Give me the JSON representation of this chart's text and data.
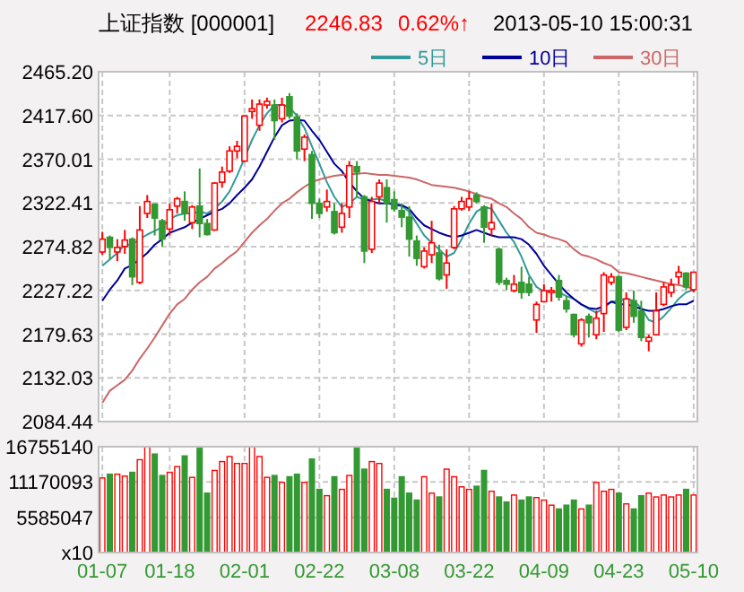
{
  "chart_data": [
    {
      "type": "candlestick",
      "title": "上证指数 [000001]",
      "annotations": [
        "2246.83",
        "0.62%↑",
        "2013-05-10 15:00:31"
      ],
      "categories": [
        null,
        null,
        null,
        null,
        null,
        null,
        null,
        null,
        null,
        null,
        null,
        null,
        null,
        null,
        null,
        null,
        null,
        null,
        null,
        null,
        null,
        null,
        null,
        null,
        null,
        null,
        null,
        null,
        null,
        null,
        null,
        null,
        null,
        null,
        null,
        null,
        null,
        null,
        null,
        null,
        null,
        null,
        null,
        null,
        null,
        null,
        null,
        null,
        null,
        null,
        null,
        null,
        null,
        null,
        null,
        null,
        null,
        null,
        null,
        null,
        null,
        null,
        null,
        null,
        null,
        null,
        null,
        null,
        null,
        null,
        null,
        null,
        null,
        null,
        null,
        null,
        null,
        null,
        null,
        null
      ],
      "ohlc": [
        [
          2269,
          2291,
          2266,
          2283
        ],
        [
          2285,
          2287,
          2261,
          2274
        ],
        [
          2269,
          2283,
          2259,
          2274
        ],
        [
          2275,
          2293,
          2267,
          2282
        ],
        [
          2283,
          2285,
          2233,
          2242
        ],
        [
          2236,
          2319,
          2234,
          2293
        ],
        [
          2311,
          2331,
          2306,
          2324
        ],
        [
          2321,
          2322,
          2287,
          2306
        ],
        [
          2303,
          2305,
          2275,
          2283
        ],
        [
          2294,
          2322,
          2287,
          2315
        ],
        [
          2319,
          2329,
          2311,
          2327
        ],
        [
          2324,
          2335,
          2303,
          2311
        ],
        [
          2301,
          2320,
          2294,
          2318
        ],
        [
          2319,
          2360,
          2285,
          2300
        ],
        [
          2300,
          2305,
          2287,
          2288
        ],
        [
          2293,
          2345,
          2292,
          2344
        ],
        [
          2345,
          2362,
          2339,
          2356
        ],
        [
          2357,
          2384,
          2355,
          2379
        ],
        [
          2379,
          2390,
          2371,
          2384
        ],
        [
          2368,
          2418,
          2367,
          2417
        ],
        [
          2422,
          2435,
          2414,
          2425
        ],
        [
          2407,
          2435,
          2401,
          2430
        ],
        [
          2429,
          2437,
          2425,
          2433
        ],
        [
          2429,
          2435,
          2391,
          2412
        ],
        [
          2414,
          2437,
          2410,
          2429
        ],
        [
          2438,
          2442,
          2414,
          2417
        ],
        [
          2416,
          2420,
          2370,
          2379
        ],
        [
          2381,
          2397,
          2368,
          2394
        ],
        [
          2375,
          2379,
          2305,
          2322
        ],
        [
          2322,
          2327,
          2306,
          2311
        ],
        [
          2318,
          2337,
          2313,
          2324
        ],
        [
          2313,
          2322,
          2288,
          2290
        ],
        [
          2296,
          2322,
          2290,
          2311
        ],
        [
          2318,
          2368,
          2306,
          2363
        ],
        [
          2362,
          2368,
          2329,
          2356
        ],
        [
          2329,
          2331,
          2257,
          2270
        ],
        [
          2272,
          2329,
          2268,
          2324
        ],
        [
          2329,
          2348,
          2322,
          2344
        ],
        [
          2339,
          2348,
          2301,
          2322
        ],
        [
          2326,
          2335,
          2313,
          2316
        ],
        [
          2314,
          2322,
          2296,
          2307
        ],
        [
          2307,
          2319,
          2264,
          2283
        ],
        [
          2281,
          2287,
          2254,
          2262
        ],
        [
          2253,
          2274,
          2251,
          2270
        ],
        [
          2266,
          2303,
          2257,
          2279
        ],
        [
          2268,
          2277,
          2238,
          2240
        ],
        [
          2244,
          2272,
          2229,
          2257
        ],
        [
          2274,
          2319,
          2272,
          2316
        ],
        [
          2316,
          2329,
          2314,
          2324
        ],
        [
          2318,
          2335,
          2314,
          2327
        ],
        [
          2331,
          2334,
          2322,
          2324
        ],
        [
          2318,
          2320,
          2279,
          2296
        ],
        [
          2294,
          2322,
          2287,
          2301
        ],
        [
          2272,
          2274,
          2233,
          2236
        ],
        [
          2238,
          2241,
          2228,
          2234
        ],
        [
          2227,
          2244,
          2225,
          2234
        ],
        [
          2236,
          2253,
          2218,
          2225
        ],
        [
          2234,
          2242,
          2221,
          2225
        ],
        [
          2195,
          2215,
          2181,
          2212
        ],
        [
          2215,
          2234,
          2214,
          2227
        ],
        [
          2225,
          2231,
          2215,
          2227
        ],
        [
          2238,
          2244,
          2216,
          2220
        ],
        [
          2216,
          2221,
          2203,
          2207
        ],
        [
          2201,
          2202,
          2176,
          2179
        ],
        [
          2169,
          2197,
          2166,
          2195
        ],
        [
          2199,
          2202,
          2176,
          2192
        ],
        [
          2179,
          2205,
          2174,
          2197
        ],
        [
          2202,
          2247,
          2182,
          2244
        ],
        [
          2236,
          2246,
          2233,
          2242
        ],
        [
          2242,
          2244,
          2182,
          2184
        ],
        [
          2187,
          2225,
          2184,
          2218
        ],
        [
          2216,
          2227,
          2192,
          2199
        ],
        [
          2205,
          2216,
          2172,
          2176
        ],
        [
          2172,
          2179,
          2161,
          2176
        ],
        [
          2179,
          2225,
          2178,
          2205
        ],
        [
          2212,
          2236,
          2210,
          2231
        ],
        [
          2225,
          2240,
          2220,
          2233
        ],
        [
          2242,
          2254,
          2234,
          2247
        ],
        [
          2246,
          2247,
          2228,
          2231
        ],
        [
          2228,
          2247,
          2225,
          2247
        ]
      ],
      "series": [
        {
          "name": "5日",
          "type": "line",
          "color": "#339999",
          "values": [
            2254,
            2261,
            2268,
            2277,
            2277,
            2283,
            2288,
            2292,
            2296,
            2305,
            2309,
            2311,
            2311,
            2313,
            2311,
            2316,
            2324,
            2335,
            2352,
            2371,
            2391,
            2407,
            2420,
            2429,
            2429,
            2427,
            2417,
            2404,
            2384,
            2365,
            2345,
            2329,
            2318,
            2322,
            2329,
            2326,
            2326,
            2327,
            2324,
            2320,
            2319,
            2313,
            2300,
            2287,
            2279,
            2272,
            2264,
            2268,
            2283,
            2300,
            2313,
            2318,
            2316,
            2303,
            2290,
            2280,
            2264,
            2244,
            2231,
            2226,
            2226,
            2225,
            2221,
            2218,
            2212,
            2207,
            2203,
            2208,
            2215,
            2216,
            2218,
            2216,
            2208,
            2195,
            2192,
            2199,
            2208,
            2218,
            2225,
            2228
          ]
        },
        {
          "name": "10日",
          "type": "line",
          "color": "#000099",
          "values": [
            2216,
            2228,
            2238,
            2251,
            2255,
            2261,
            2268,
            2277,
            2283,
            2290,
            2293,
            2296,
            2301,
            2305,
            2309,
            2313,
            2316,
            2322,
            2331,
            2339,
            2348,
            2362,
            2378,
            2394,
            2407,
            2412,
            2413,
            2412,
            2401,
            2391,
            2378,
            2365,
            2357,
            2345,
            2335,
            2327,
            2324,
            2322,
            2322,
            2321,
            2320,
            2316,
            2306,
            2298,
            2294,
            2290,
            2287,
            2285,
            2287,
            2290,
            2293,
            2290,
            2287,
            2285,
            2285,
            2285,
            2283,
            2277,
            2267,
            2254,
            2244,
            2234,
            2225,
            2218,
            2212,
            2208,
            2207,
            2210,
            2215,
            2212,
            2212,
            2210,
            2207,
            2205,
            2205,
            2207,
            2210,
            2212,
            2212,
            2216
          ]
        },
        {
          "name": "30日",
          "type": "line",
          "color": "#cc6666",
          "values": [
            2105,
            2118,
            2124,
            2130,
            2140,
            2153,
            2164,
            2176,
            2189,
            2202,
            2212,
            2218,
            2228,
            2236,
            2242,
            2251,
            2257,
            2264,
            2270,
            2280,
            2290,
            2298,
            2305,
            2314,
            2322,
            2327,
            2334,
            2340,
            2345,
            2348,
            2350,
            2352,
            2353,
            2354,
            2354,
            2355,
            2354,
            2353,
            2353,
            2352,
            2351,
            2350,
            2348,
            2345,
            2342,
            2341,
            2340,
            2339,
            2337,
            2335,
            2332,
            2329,
            2327,
            2322,
            2318,
            2311,
            2305,
            2296,
            2290,
            2288,
            2285,
            2283,
            2280,
            2272,
            2266,
            2264,
            2261,
            2257,
            2254,
            2247,
            2246,
            2244,
            2242,
            2240,
            2238,
            2236,
            2234,
            2233,
            2231,
            2229
          ]
        }
      ],
      "ylim": [
        2084.44,
        2465.2
      ],
      "yticks": [
        {
          "value": 2084.44,
          "label": "2084.44"
        },
        2132.03,
        2179.63,
        {
          "value": 2227.22,
          "label": "2227.22"
        },
        2274.82,
        2322.41,
        {
          "value": 2370.01,
          "label": "2370.01"
        },
        {
          "value": 2417.6,
          "label": "2417.60"
        },
        {
          "value": 2465.2,
          "label": "2465.20"
        }
      ],
      "grid": true,
      "legend": "top right",
      "tick_labels": "y"
    },
    {
      "type": "bar",
      "categories": [
        "01-07",
        null,
        null,
        null,
        null,
        null,
        null,
        null,
        null,
        "01-18",
        null,
        null,
        null,
        null,
        null,
        null,
        null,
        null,
        null,
        "02-01",
        null,
        null,
        null,
        null,
        null,
        null,
        null,
        null,
        null,
        "02-22",
        null,
        null,
        null,
        null,
        null,
        null,
        null,
        null,
        null,
        "03-08",
        null,
        null,
        null,
        null,
        null,
        null,
        null,
        null,
        null,
        "03-22",
        null,
        null,
        null,
        null,
        null,
        null,
        null,
        null,
        null,
        "04-09",
        null,
        null,
        null,
        null,
        null,
        null,
        null,
        null,
        null,
        "04-23",
        null,
        null,
        null,
        null,
        null,
        null,
        null,
        null,
        null,
        "05-10"
      ],
      "values": [
        11800000,
        12400000,
        12400000,
        12100000,
        12700000,
        14700000,
        16700000,
        15600000,
        12200000,
        12700000,
        13600000,
        15300000,
        11900000,
        16500000,
        9400000,
        13000000,
        14400000,
        15200000,
        14100000,
        14100000,
        16700000,
        15200000,
        11900000,
        12200000,
        11100000,
        12000000,
        12400000,
        11100000,
        14800000,
        10000000,
        9000000,
        12000000,
        10000000,
        12200000,
        16500000,
        13200000,
        14400000,
        14100000,
        10000000,
        8600000,
        12000000,
        9400000,
        8300000,
        12000000,
        9400000,
        8800000,
        13200000,
        12000000,
        10400000,
        10000000,
        10500000,
        13000000,
        9700000,
        8800000,
        8000000,
        9100000,
        8300000,
        8800000,
        8700000,
        8300000,
        7500000,
        6900000,
        7500000,
        8300000,
        6900000,
        7500000,
        11100000,
        9700000,
        10000000,
        9400000,
        7700000,
        6900000,
        9000000,
        9400000,
        8800000,
        9100000,
        8800000,
        9100000,
        10000000,
        9100000
      ],
      "colors": [
        "#ff0000",
        "#339933",
        "#ff0000",
        "#ff0000",
        "#339933",
        "#ff0000",
        "#ff0000",
        "#339933",
        "#339933",
        "#ff0000",
        "#ff0000",
        "#339933",
        "#ff0000",
        "#339933",
        "#339933",
        "#ff0000",
        "#ff0000",
        "#ff0000",
        "#ff0000",
        "#ff0000",
        "#ff0000",
        "#ff0000",
        "#ff0000",
        "#339933",
        "#ff0000",
        "#339933",
        "#339933",
        "#ff0000",
        "#339933",
        "#339933",
        "#ff0000",
        "#339933",
        "#ff0000",
        "#ff0000",
        "#339933",
        "#339933",
        "#ff0000",
        "#ff0000",
        "#339933",
        "#339933",
        "#339933",
        "#339933",
        "#339933",
        "#ff0000",
        "#ff0000",
        "#339933",
        "#ff0000",
        "#ff0000",
        "#ff0000",
        "#ff0000",
        "#339933",
        "#339933",
        "#ff0000",
        "#339933",
        "#339933",
        "#ff0000",
        "#339933",
        "#339933",
        "#ff0000",
        "#ff0000",
        "#ff0000",
        "#339933",
        "#339933",
        "#339933",
        "#ff0000",
        "#339933",
        "#ff0000",
        "#ff0000",
        "#ff0000",
        "#339933",
        "#ff0000",
        "#339933",
        "#339933",
        "#ff0000",
        "#ff0000",
        "#ff0000",
        "#ff0000",
        "#ff0000",
        "#339933",
        "#ff0000"
      ],
      "ylim": [
        0,
        16755140
      ],
      "yticks": [
        {
          "value": 0,
          "label": "x10"
        },
        5585047,
        11170093,
        16755140
      ],
      "grid": true
    }
  ]
}
